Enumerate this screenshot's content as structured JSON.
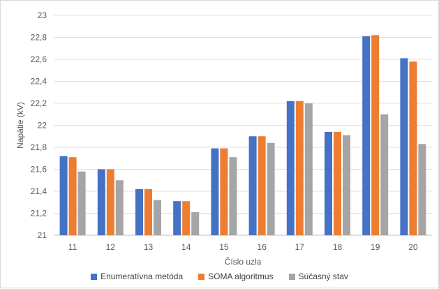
{
  "chart_data": {
    "type": "bar",
    "title": "",
    "xlabel": "Číslo uzla",
    "ylabel": "Napätie (kV)",
    "ylim": [
      21,
      23
    ],
    "yticks": [
      "21",
      "21,2",
      "21,4",
      "21,6",
      "21,8",
      "22",
      "22,2",
      "22,4",
      "22,6",
      "22,8",
      "23"
    ],
    "grid": true,
    "legend_position": "bottom",
    "categories": [
      "11",
      "12",
      "13",
      "14",
      "15",
      "16",
      "17",
      "18",
      "19",
      "20"
    ],
    "series": [
      {
        "name": "Enumeratívna metóda",
        "color": "#4472C4",
        "values": [
          21.72,
          21.6,
          21.42,
          21.31,
          21.79,
          21.9,
          22.22,
          21.94,
          22.81,
          22.61
        ]
      },
      {
        "name": "SOMA algoritmus",
        "color": "#ED7D31",
        "values": [
          21.71,
          21.6,
          21.42,
          21.31,
          21.79,
          21.9,
          22.22,
          21.94,
          22.82,
          22.58
        ]
      },
      {
        "name": "Súčasný stav",
        "color": "#A5A5A5",
        "values": [
          21.58,
          21.5,
          21.32,
          21.21,
          21.71,
          21.84,
          22.2,
          21.91,
          22.1,
          21.83
        ]
      }
    ]
  }
}
